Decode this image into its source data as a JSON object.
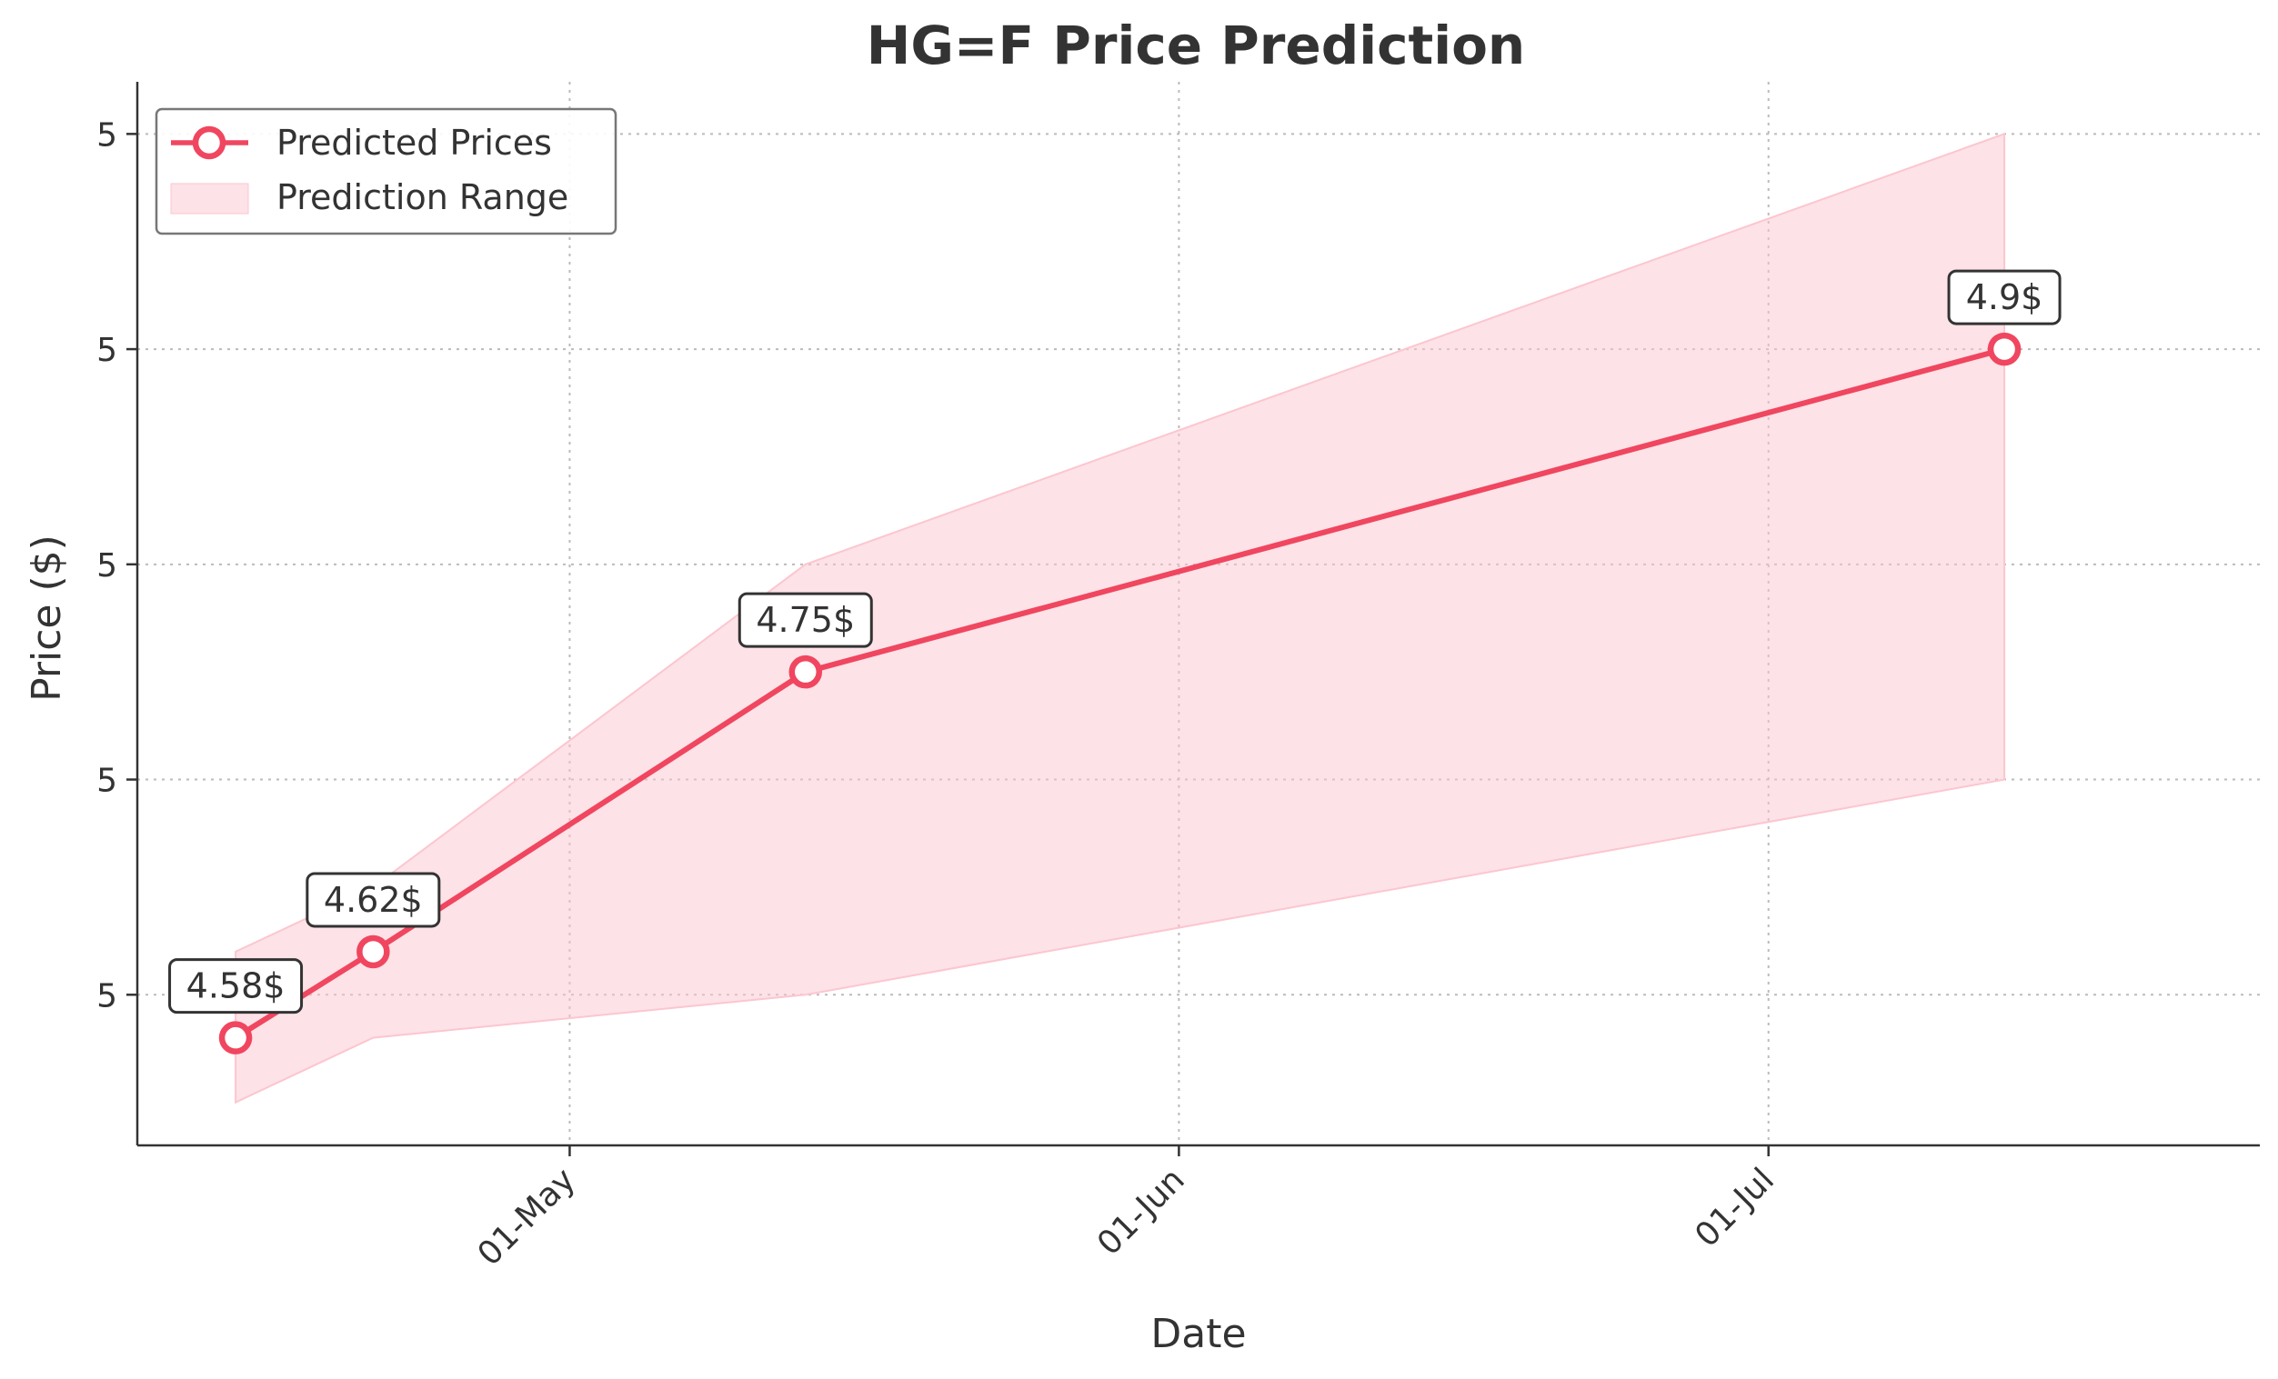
{
  "chart_data": {
    "type": "line",
    "title": "HG=F Price Prediction",
    "xlabel": "Date",
    "ylabel": "Price ($)",
    "x_ticks": [
      {
        "date": "2024-05-01",
        "label": "01-May"
      },
      {
        "date": "2024-06-01",
        "label": "01-Jun"
      },
      {
        "date": "2024-07-01",
        "label": "01-Jul"
      }
    ],
    "y_ticks": [
      {
        "value": 4.6,
        "label": "5"
      },
      {
        "value": 4.7,
        "label": "5"
      },
      {
        "value": 4.8,
        "label": "5"
      },
      {
        "value": 4.9,
        "label": "5"
      },
      {
        "value": 5.0,
        "label": "5"
      }
    ],
    "xlim": [
      "2024-04-09",
      "2024-07-26"
    ],
    "ylim": [
      4.53,
      5.02
    ],
    "grid": true,
    "legend_position": "top-left",
    "series": [
      {
        "name": "Predicted Prices",
        "color": "#f0465f",
        "points": [
          {
            "date": "2024-04-14",
            "value": 4.58,
            "label": "4.58$"
          },
          {
            "date": "2024-04-21",
            "value": 4.62,
            "label": "4.62$"
          },
          {
            "date": "2024-05-13",
            "value": 4.75,
            "label": "4.75$"
          },
          {
            "date": "2024-07-13",
            "value": 4.9,
            "label": "4.9$"
          }
        ]
      }
    ],
    "range": {
      "name": "Prediction Range",
      "color": "#fcc6cf",
      "upper": [
        {
          "date": "2024-04-14",
          "value": 4.62
        },
        {
          "date": "2024-04-21",
          "value": 4.65
        },
        {
          "date": "2024-05-13",
          "value": 4.8
        },
        {
          "date": "2024-07-13",
          "value": 5.0
        }
      ],
      "lower": [
        {
          "date": "2024-04-14",
          "value": 4.55
        },
        {
          "date": "2024-04-21",
          "value": 4.58
        },
        {
          "date": "2024-05-13",
          "value": 4.6
        },
        {
          "date": "2024-07-13",
          "value": 4.7
        }
      ]
    }
  }
}
